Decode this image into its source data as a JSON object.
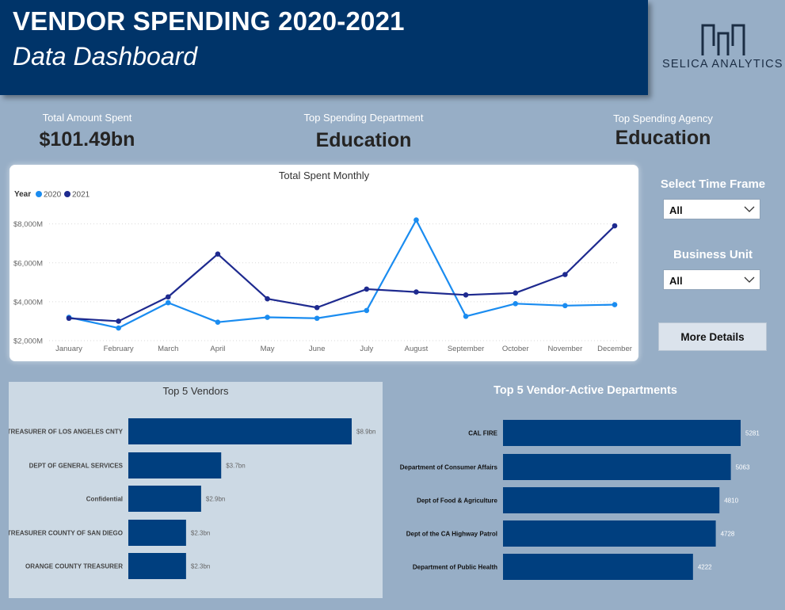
{
  "header": {
    "title": "VENDOR SPENDING 2020-2021",
    "subtitle": "Data Dashboard"
  },
  "logo": {
    "name": "SELICA ANALYTICS",
    "icon": "selica-logo-mark",
    "color": "#1b2d44"
  },
  "kpis": [
    {
      "label": "Total Amount Spent",
      "value": "$101.49bn"
    },
    {
      "label": "Top Spending Department",
      "value": "Education"
    },
    {
      "label": "Top Spending Agency",
      "value": "Education"
    }
  ],
  "slicers": {
    "time_frame": {
      "label": "Select Time Frame",
      "value": "All"
    },
    "business_unit": {
      "label": "Business Unit",
      "value": "All"
    }
  },
  "more_details_button": "More Details",
  "colors": {
    "header_bg": "#003469",
    "page_bg": "#97aec6",
    "bar": "#003f7f",
    "series_2020": "#1a8cf0",
    "series_2021": "#1e2a8f"
  },
  "chart_data": [
    {
      "type": "line",
      "title": "Total Spent Monthly",
      "legend_title": "Year",
      "legend_placement": "top-left",
      "categories": [
        "January",
        "February",
        "March",
        "April",
        "May",
        "June",
        "July",
        "August",
        "September",
        "October",
        "November",
        "December"
      ],
      "y_ticks": [
        "$2,000M",
        "$4,000M",
        "$6,000M",
        "$8,000M"
      ],
      "ylim": [
        2000,
        8800
      ],
      "grid": true,
      "series": [
        {
          "name": "2020",
          "color": "#1a8cf0",
          "values": [
            3200,
            2650,
            3950,
            2950,
            3200,
            3150,
            3550,
            8200,
            3250,
            3900,
            3800,
            3850
          ]
        },
        {
          "name": "2021",
          "color": "#1e2a8f",
          "values": [
            3150,
            3000,
            4250,
            6450,
            4150,
            3700,
            4650,
            4500,
            4350,
            4450,
            5400,
            7900
          ]
        }
      ]
    },
    {
      "type": "bar",
      "orientation": "horizontal",
      "title": "Top 5 Vendors",
      "categories": [
        "TREASURER OF LOS ANGELES CNTY",
        "DEPT OF GENERAL SERVICES",
        "Confidential",
        "TREASURER COUNTY OF SAN DIEGO",
        "ORANGE COUNTY TREASURER"
      ],
      "values": [
        8.9,
        3.7,
        2.9,
        2.3,
        2.3
      ],
      "data_labels": [
        "$8.9bn",
        "$3.7bn",
        "$2.9bn",
        "$2.3bn",
        "$2.3bn"
      ]
    },
    {
      "type": "bar",
      "orientation": "horizontal",
      "title": "Top 5 Vendor-Active Departments",
      "categories": [
        "CAL FIRE",
        "Department of Consumer Affairs",
        "Dept of Food & Agriculture",
        "Dept of the CA Highway Patrol",
        "Department of Public Health"
      ],
      "values": [
        5281,
        5063,
        4810,
        4728,
        4222
      ],
      "data_labels": [
        "5281",
        "5063",
        "4810",
        "4728",
        "4222"
      ]
    }
  ]
}
